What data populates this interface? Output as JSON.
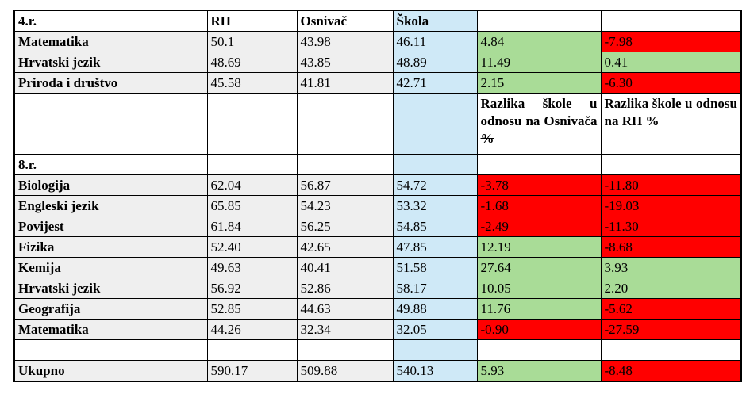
{
  "header": {
    "grade": "4.r.",
    "col_rh": "RH",
    "col_osnivac": "Osnivač",
    "col_skola": "Škola"
  },
  "grade4_rows": [
    {
      "subject": "Matematika",
      "rh": "50.1",
      "osnivac": "43.98",
      "skola": "46.11",
      "diff_osnivac": "4.84",
      "diff_rh": "-7.98",
      "diff_osnivac_color": "green",
      "diff_rh_color": "red"
    },
    {
      "subject": "Hrvatski jezik",
      "rh": "48.69",
      "osnivac": "43.85",
      "skola": "48.89",
      "diff_osnivac": "11.49",
      "diff_rh": "0.41",
      "diff_osnivac_color": "green",
      "diff_rh_color": "green"
    },
    {
      "subject": "Priroda i društvo",
      "rh": "45.58",
      "osnivac": "41.81",
      "skola": "42.71",
      "diff_osnivac": "2.15",
      "diff_rh": "-6.30",
      "diff_osnivac_color": "green",
      "diff_rh_color": "red"
    }
  ],
  "diff_header": {
    "diff_osnivac_label": "Razlika škole u odnosu na Osnivača",
    "diff_osnivac_struck": "%",
    "diff_rh_label": "Razlika škole u odnosu na RH %"
  },
  "grade8_label": "8.r.",
  "grade8_rows": [
    {
      "subject": "Biologija",
      "rh": "62.04",
      "osnivac": "56.87",
      "skola": "54.72",
      "diff_osnivac": "-3.78",
      "diff_rh": "-11.80",
      "diff_osnivac_color": "red",
      "diff_rh_color": "red"
    },
    {
      "subject": "Engleski jezik",
      "rh": "65.85",
      "osnivac": "54.23",
      "skola": "53.32",
      "diff_osnivac": "-1.68",
      "diff_rh": "-19.03",
      "diff_osnivac_color": "red",
      "diff_rh_color": "red"
    },
    {
      "subject": "Povijest",
      "rh": "61.84",
      "osnivac": "56.25",
      "skola": "54.85",
      "diff_osnivac": "-2.49",
      "diff_rh": "-11.30",
      "diff_osnivac_color": "red",
      "diff_rh_color": "red"
    },
    {
      "subject": "Fizika",
      "rh": "52.40",
      "osnivac": "42.65",
      "skola": "47.85",
      "diff_osnivac": "12.19",
      "diff_rh": "-8.68",
      "diff_osnivac_color": "green",
      "diff_rh_color": "red"
    },
    {
      "subject": "Kemija",
      "rh": "49.63",
      "osnivac": "40.41",
      "skola": "51.58",
      "diff_osnivac": "27.64",
      "diff_rh": "3.93",
      "diff_osnivac_color": "green",
      "diff_rh_color": "green"
    },
    {
      "subject": "Hrvatski jezik",
      "rh": "56.92",
      "osnivac": "52.86",
      "skola": "58.17",
      "diff_osnivac": "10.05",
      "diff_rh": "2.20",
      "diff_osnivac_color": "green",
      "diff_rh_color": "green"
    },
    {
      "subject": "Geografija",
      "rh": "52.85",
      "osnivac": "44.63",
      "skola": "49.88",
      "diff_osnivac": "11.76",
      "diff_rh": "-5.62",
      "diff_osnivac_color": "green",
      "diff_rh_color": "red"
    },
    {
      "subject": "Matematika",
      "rh": "44.26",
      "osnivac": "32.34",
      "skola": "32.05",
      "diff_osnivac": "-0.90",
      "diff_rh": "-27.59",
      "diff_osnivac_color": "red",
      "diff_rh_color": "red"
    }
  ],
  "total": {
    "subject": "Ukupno",
    "rh": "590.17",
    "osnivac": "509.88",
    "skola": "540.13",
    "diff_osnivac": "5.93",
    "diff_rh": "-8.48",
    "diff_osnivac_color": "green",
    "diff_rh_color": "red"
  }
}
